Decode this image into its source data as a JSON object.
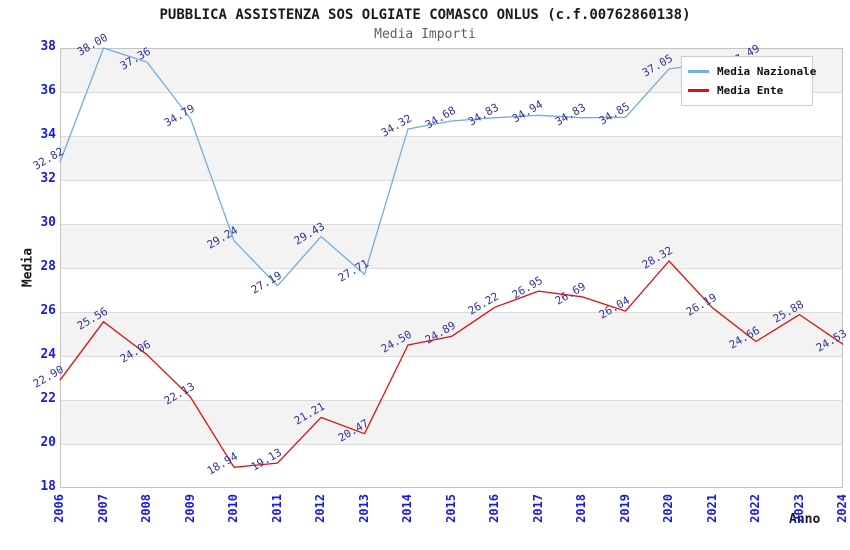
{
  "title": "PUBBLICA ASSISTENZA SOS OLGIATE COMASCO ONLUS (c.f.00762860138)",
  "subtitle": "Media Importi",
  "legend": {
    "items": [
      {
        "label": "Media Nazionale",
        "color": "#74addf"
      },
      {
        "label": "Media Ente",
        "color": "#dd1111"
      }
    ]
  },
  "axes": {
    "ylabel": "Media",
    "xlabel": "Anno",
    "yticks": [
      18,
      20,
      22,
      24,
      26,
      28,
      30,
      32,
      34,
      36,
      38
    ],
    "tick_color": "#1a1ae6",
    "data_label_color": "#333399"
  },
  "chart_data": {
    "type": "line",
    "title": "PUBBLICA ASSISTENZA SOS OLGIATE COMASCO ONLUS (c.f.00762860138)",
    "subtitle": "Media Importi",
    "xlabel": "Anno",
    "ylabel": "Media",
    "ylim": [
      18,
      38
    ],
    "grid": "horizontal gridlines with alternating gray bands every 2 units",
    "legend_position": "upper right",
    "x": [
      2006,
      2007,
      2008,
      2009,
      2010,
      2011,
      2012,
      2013,
      2014,
      2015,
      2016,
      2017,
      2018,
      2019,
      2020,
      2021,
      2022,
      2023,
      2024
    ],
    "series": [
      {
        "name": "Media Nazionale",
        "color": "#74addf",
        "values": [
          32.82,
          38.0,
          37.36,
          34.79,
          29.24,
          27.19,
          29.43,
          27.71,
          34.32,
          34.68,
          34.83,
          34.94,
          34.83,
          34.85,
          37.05,
          37.3,
          37.49,
          null,
          null
        ],
        "label_hidden_indices": [
          15
        ],
        "note": "2021 value hidden behind legend (estimated); 2023-2024 not visible"
      },
      {
        "name": "Media Ente",
        "color": "#dd1111",
        "values": [
          22.9,
          25.56,
          24.06,
          22.13,
          18.94,
          19.13,
          21.21,
          20.47,
          24.5,
          24.89,
          26.22,
          26.95,
          26.69,
          26.04,
          28.32,
          26.19,
          24.66,
          25.88,
          24.53
        ],
        "label_hidden_indices": []
      }
    ]
  }
}
